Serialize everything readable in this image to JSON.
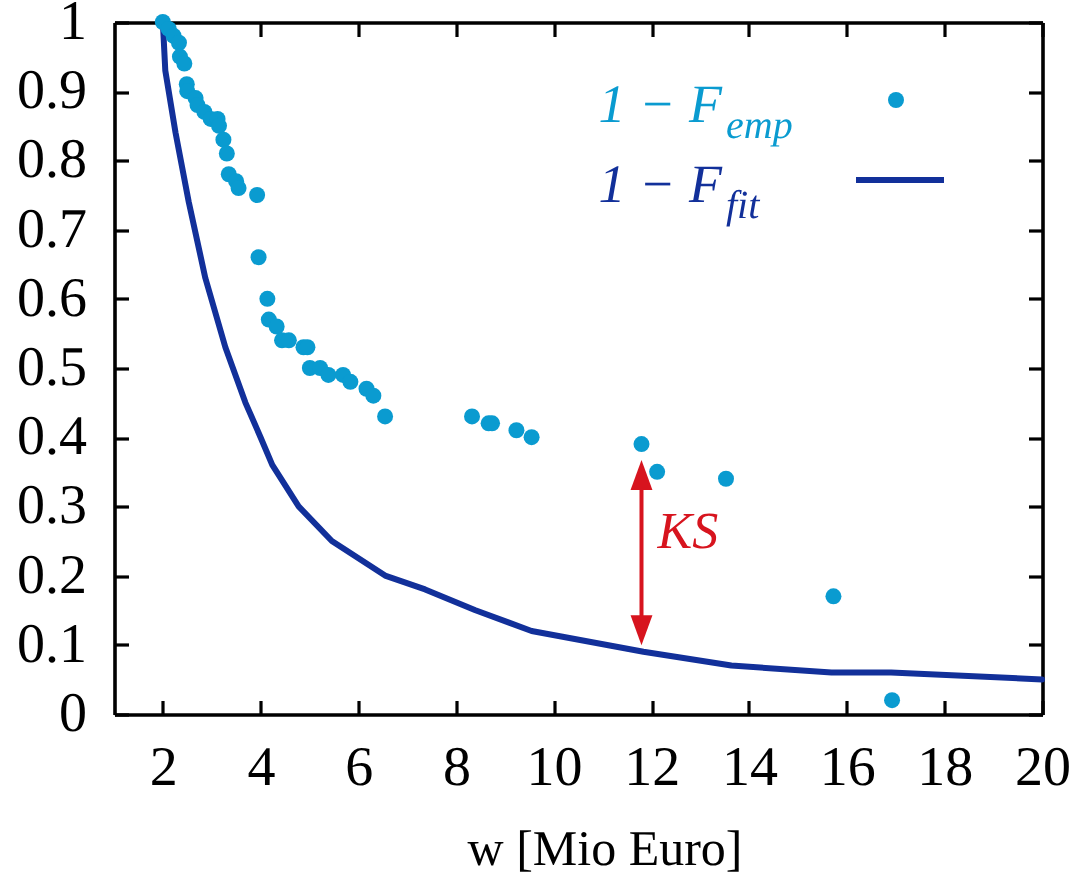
{
  "chart_data": {
    "type": "scatter",
    "xlabel": "w [Mio Euro]",
    "xlim": [
      1,
      20
    ],
    "ylim": [
      0,
      1
    ],
    "xticks": [
      2,
      4,
      6,
      8,
      10,
      12,
      14,
      16,
      18,
      20
    ],
    "yticks": [
      0,
      0.1,
      0.2,
      0.3,
      0.4,
      0.5,
      0.6,
      0.7,
      0.8,
      0.9,
      1
    ],
    "legend": "top right",
    "series": [
      {
        "name": "1 − F$_{emp}$",
        "marker": "circle",
        "color": "#0a9bd0",
        "x": [
          2.0,
          2.12,
          2.22,
          2.33,
          2.35,
          2.44,
          2.49,
          2.5,
          2.67,
          2.71,
          2.85,
          2.98,
          3.12,
          3.15,
          3.24,
          3.31,
          3.35,
          3.5,
          3.55,
          3.93,
          3.96,
          4.14,
          4.17,
          4.33,
          4.44,
          4.58,
          4.88,
          4.96,
          5.01,
          5.22,
          5.39,
          5.69,
          5.84,
          6.17,
          6.31,
          6.55,
          8.33,
          8.67,
          8.74,
          9.24,
          9.55,
          11.8,
          12.12,
          13.53,
          15.73,
          16.93
        ],
        "values": [
          1.0,
          0.99,
          0.98,
          0.97,
          0.95,
          0.94,
          0.91,
          0.9,
          0.89,
          0.88,
          0.87,
          0.86,
          0.86,
          0.85,
          0.83,
          0.81,
          0.78,
          0.77,
          0.76,
          0.75,
          0.66,
          0.6,
          0.57,
          0.56,
          0.54,
          0.54,
          0.53,
          0.53,
          0.5,
          0.5,
          0.49,
          0.49,
          0.48,
          0.47,
          0.46,
          0.43,
          0.43,
          0.42,
          0.42,
          0.41,
          0.4,
          0.39,
          0.35,
          0.34,
          0.17,
          0.02
        ]
      },
      {
        "name": "1 − F$_{fit}$",
        "type": "line",
        "line_style": "solid",
        "color": "#12309a",
        "x": [
          2.0,
          2.05,
          2.26,
          2.53,
          2.87,
          3.28,
          3.69,
          4.0,
          4.24,
          4.78,
          5.46,
          6.55,
          7.37,
          8.4,
          9.55,
          11.84,
          13.64,
          15.69,
          16.91,
          20.0
        ],
        "values": [
          1.0,
          0.93,
          0.84,
          0.74,
          0.63,
          0.53,
          0.45,
          0.4,
          0.36,
          0.3,
          0.25,
          0.2,
          0.18,
          0.15,
          0.12,
          0.09,
          0.07,
          0.06,
          0.06,
          0.05
        ]
      }
    ],
    "annotations": [
      {
        "text": "KS",
        "x": 11.8,
        "y": 0.39
      }
    ]
  }
}
